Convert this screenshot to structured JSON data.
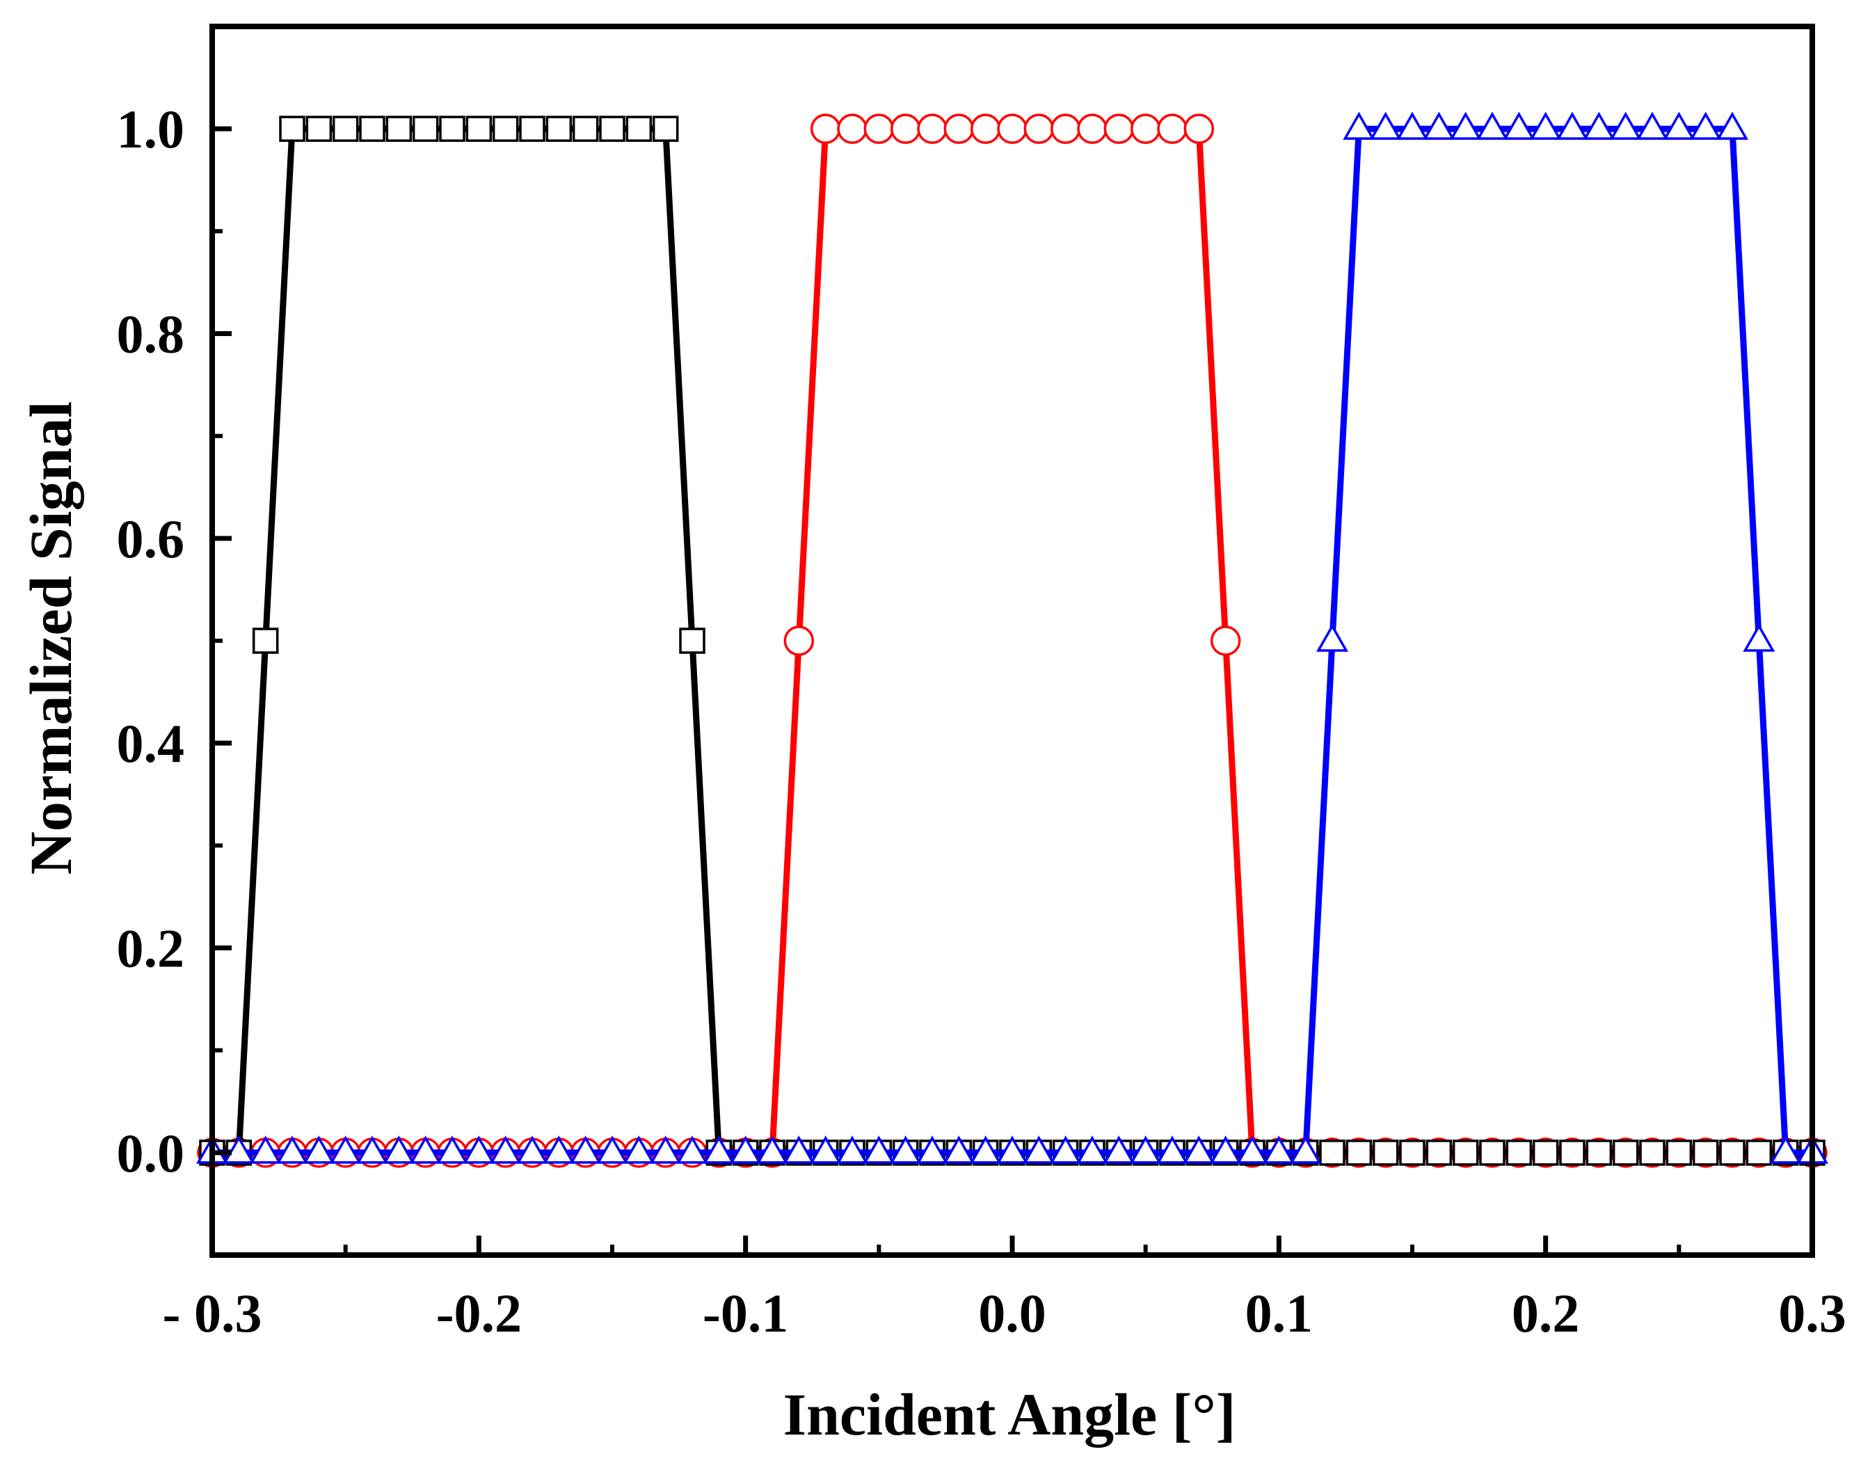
{
  "chart_data": {
    "type": "line",
    "title": "",
    "xlabel": "Incident Angle [°]",
    "ylabel": "Normalized Signal",
    "xlim": [
      -0.3,
      0.3
    ],
    "ylim": [
      -0.1,
      1.1
    ],
    "x_ticks": [
      -0.3,
      -0.2,
      -0.1,
      0.0,
      0.1,
      0.2,
      0.3
    ],
    "x_tick_labels": [
      "- 0.3",
      "-0.2",
      "-0.1",
      "0.0",
      "0.1",
      "0.2",
      "0.3"
    ],
    "y_ticks": [
      0.0,
      0.2,
      0.4,
      0.6,
      0.8,
      1.0
    ],
    "y_tick_labels": [
      "0.0",
      "0.2",
      "0.4",
      "0.6",
      "0.8",
      "1.0"
    ],
    "x_minor_step": 0.05,
    "y_minor_step": 0.1,
    "x": [
      -0.3,
      -0.29,
      -0.28,
      -0.27,
      -0.26,
      -0.25,
      -0.24,
      -0.23,
      -0.22,
      -0.21,
      -0.2,
      -0.19,
      -0.18,
      -0.17,
      -0.16,
      -0.15,
      -0.14,
      -0.13,
      -0.12,
      -0.11,
      -0.1,
      -0.09,
      -0.08,
      -0.07,
      -0.06,
      -0.05,
      -0.04,
      -0.03,
      -0.02,
      -0.01,
      0.0,
      0.01,
      0.02,
      0.03,
      0.04,
      0.05,
      0.06,
      0.07,
      0.08,
      0.09,
      0.1,
      0.11,
      0.12,
      0.13,
      0.14,
      0.15,
      0.16,
      0.17,
      0.18,
      0.19,
      0.2,
      0.21,
      0.22,
      0.23,
      0.24,
      0.25,
      0.26,
      0.27,
      0.28,
      0.29,
      0.3
    ],
    "series": [
      {
        "name": "black-squares",
        "color": "#000000",
        "marker": "square",
        "values": [
          0,
          0,
          0.5,
          1,
          1,
          1,
          1,
          1,
          1,
          1,
          1,
          1,
          1,
          1,
          1,
          1,
          1,
          1,
          0.5,
          0,
          0,
          0,
          0,
          0,
          0,
          0,
          0,
          0,
          0,
          0,
          0,
          0,
          0,
          0,
          0,
          0,
          0,
          0,
          0,
          0,
          0,
          0,
          0,
          0,
          0,
          0,
          0,
          0,
          0,
          0,
          0,
          0,
          0,
          0,
          0,
          0,
          0,
          0,
          0,
          0,
          0
        ]
      },
      {
        "name": "red-circles",
        "color": "#ff0000",
        "marker": "circle",
        "values": [
          0,
          0,
          0,
          0,
          0,
          0,
          0,
          0,
          0,
          0,
          0,
          0,
          0,
          0,
          0,
          0,
          0,
          0,
          0,
          0,
          0,
          0,
          0.5,
          1,
          1,
          1,
          1,
          1,
          1,
          1,
          1,
          1,
          1,
          1,
          1,
          1,
          1,
          1,
          0.5,
          0,
          0,
          0,
          0,
          0,
          0,
          0,
          0,
          0,
          0,
          0,
          0,
          0,
          0,
          0,
          0,
          0,
          0,
          0,
          0,
          0,
          0
        ]
      },
      {
        "name": "blue-triangles",
        "color": "#0000ff",
        "marker": "triangle",
        "values": [
          0,
          0,
          0,
          0,
          0,
          0,
          0,
          0,
          0,
          0,
          0,
          0,
          0,
          0,
          0,
          0,
          0,
          0,
          0,
          0,
          0,
          0,
          0,
          0,
          0,
          0,
          0,
          0,
          0,
          0,
          0,
          0,
          0,
          0,
          0,
          0,
          0,
          0,
          0,
          0,
          0,
          0,
          0.5,
          1,
          1,
          1,
          1,
          1,
          1,
          1,
          1,
          1,
          1,
          1,
          1,
          1,
          1,
          1,
          0.5,
          0,
          0
        ]
      }
    ]
  }
}
